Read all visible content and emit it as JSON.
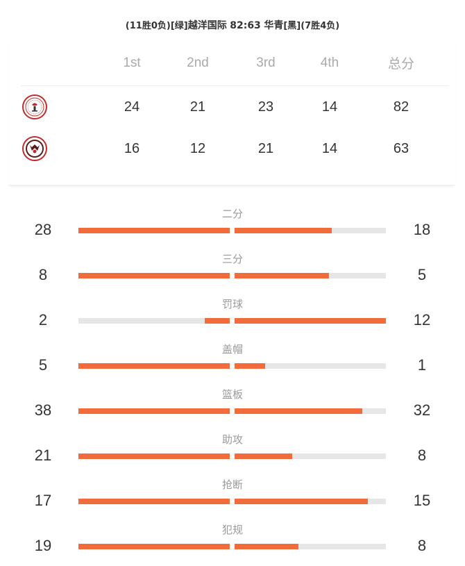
{
  "match": {
    "home_record": "(11胜0负)",
    "home_color": "[绿]",
    "home_name": "越洋国际",
    "score": "82:63",
    "away_name": "华青",
    "away_color": "[黑]",
    "away_record": "(7胜4负)"
  },
  "scoreboard": {
    "headers": [
      "1st",
      "2nd",
      "3rd",
      "4th",
      "总分"
    ],
    "teams": [
      {
        "logo_icon": "yueyang-team-logo-icon",
        "q1": "24",
        "q2": "21",
        "q3": "23",
        "q4": "14",
        "total": "82"
      },
      {
        "logo_icon": "huaqing-team-logo-icon",
        "q1": "16",
        "q2": "12",
        "q3": "21",
        "q4": "14",
        "total": "63"
      }
    ]
  },
  "stats": [
    {
      "label": "二分",
      "left": "28",
      "right": "18",
      "left_share": 1.0,
      "right_share": 0.643
    },
    {
      "label": "三分",
      "left": "8",
      "right": "5",
      "left_share": 1.0,
      "right_share": 0.625
    },
    {
      "label": "罚球",
      "left": "2",
      "right": "12",
      "left_share": 0.167,
      "right_share": 1.0
    },
    {
      "label": "盖帽",
      "left": "5",
      "right": "1",
      "left_share": 1.0,
      "right_share": 0.2
    },
    {
      "label": "篮板",
      "left": "38",
      "right": "32",
      "left_share": 1.0,
      "right_share": 0.842
    },
    {
      "label": "助攻",
      "left": "21",
      "right": "8",
      "left_share": 1.0,
      "right_share": 0.381
    },
    {
      "label": "抢断",
      "left": "17",
      "right": "15",
      "left_share": 1.0,
      "right_share": 0.882
    },
    {
      "label": "犯规",
      "left": "19",
      "right": "8",
      "left_share": 1.0,
      "right_share": 0.421
    }
  ],
  "colors": {
    "bar_fill": "#f26b3a",
    "bar_track": "#e6e6e6",
    "logo_ring": "#c22a2a"
  }
}
